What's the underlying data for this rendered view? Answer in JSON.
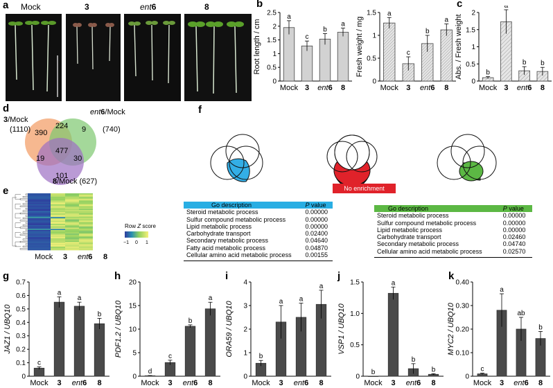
{
  "panels": {
    "a": "a",
    "b": "b",
    "c": "c",
    "d": "d",
    "e": "e",
    "f": "f",
    "g": "g",
    "h": "h",
    "i": "i",
    "j": "j",
    "k": "k"
  },
  "photo_labels": [
    "Mock",
    "3",
    "ent6",
    "8"
  ],
  "treatments_plain": [
    "Mock",
    "3",
    "8"
  ],
  "ent_prefix": "ent",
  "ent_suffix": "6",
  "colors": {
    "bar_dark": "#4a4a4a",
    "bar_light": "#cfcfcf",
    "venn_orange": "#f3a06b",
    "venn_green": "#7dc86f",
    "venn_purple": "#9d6fc3",
    "go_blue": "#29aee3",
    "go_red": "#e0222a",
    "go_green": "#5cb844"
  },
  "panel_b": {
    "chart_data": [
      {
        "type": "bar",
        "categories": [
          "Mock",
          "3",
          "ent6",
          "8"
        ],
        "values": [
          1.95,
          1.28,
          1.53,
          1.78
        ],
        "errors": [
          0.25,
          0.18,
          0.2,
          0.15
        ],
        "letters": [
          "a",
          "c",
          "b",
          "a"
        ],
        "ylabel": "Root length / cm",
        "ylim": [
          0,
          2.5
        ],
        "yticks": [
          "0",
          "0.5",
          "1",
          "1.5",
          "2",
          "2.5"
        ]
      },
      {
        "type": "bar",
        "categories": [
          "Mock",
          "3",
          "ent6",
          "8"
        ],
        "values": [
          1.27,
          0.38,
          0.82,
          1.12
        ],
        "errors": [
          0.12,
          0.15,
          0.18,
          0.13
        ],
        "letters": [
          "a",
          "c",
          "b",
          "a"
        ],
        "ylabel": "Fresh weight / mg",
        "ylim": [
          0,
          1.5
        ],
        "yticks": [
          "0",
          "0.5",
          "1",
          "1.5"
        ]
      }
    ]
  },
  "panel_c": {
    "chart_data": {
      "type": "bar",
      "categories": [
        "Mock",
        "3",
        "ent6",
        "8"
      ],
      "values": [
        0.1,
        1.73,
        0.3,
        0.28
      ],
      "errors": [
        0.03,
        0.35,
        0.12,
        0.12
      ],
      "letters": [
        "b",
        "a",
        "b",
        "b"
      ],
      "ylabel": "Abs. / Fresh weight",
      "ylim": [
        0,
        2
      ],
      "yticks": [
        "0",
        "0.5",
        "1",
        "1.5",
        "2"
      ]
    }
  },
  "panel_d": {
    "set_a_name_bold": "3",
    "set_a_name": "/Mock",
    "set_a_count": "(1110)",
    "set_b_name_italic": "ent",
    "set_b_name_bold": "6",
    "set_b_name": "/Mock",
    "set_b_count": "(740)",
    "set_c_name_bold": "8",
    "set_c_name": "/Mock (627)",
    "regions": {
      "a_only": "390",
      "ab": "224",
      "b_only": "9",
      "abc": "477",
      "ac": "19",
      "bc": "30",
      "c_only": "101"
    }
  },
  "panel_e": {
    "legend_title_pre": "Row ",
    "legend_title_z": "Z",
    "legend_title_post": " score",
    "legend_ticks": [
      "−1",
      "0",
      "1"
    ],
    "columns": [
      "Mock",
      "3",
      "ent6",
      "8"
    ]
  },
  "panel_f": {
    "no_enrichment": "No enrichment",
    "go_header": "Go description",
    "p_header_italic": "P",
    "p_header": " value",
    "left_table": [
      {
        "desc": "Steroid metabolic process",
        "p": "0.00000"
      },
      {
        "desc": "Sulfur compound metabolic process",
        "p": "0.00000"
      },
      {
        "desc": "Lipid metabolic process",
        "p": "0.00000"
      },
      {
        "desc": "Carbohydrate transport",
        "p": "0.02400"
      },
      {
        "desc": "Secondary metabolic process",
        "p": "0.04640"
      },
      {
        "desc": "Fatty acid metabolic process",
        "p": "0.04870"
      },
      {
        "desc": "Cellular amino acid metabolic process",
        "p": "0.00155"
      }
    ],
    "right_table": [
      {
        "desc": "Steroid metabolic process",
        "p": "0.00000"
      },
      {
        "desc": "Sulfur compound metabolic process",
        "p": "0.00000"
      },
      {
        "desc": "Lipid metabolic process",
        "p": "0.00000"
      },
      {
        "desc": "Carbohydrate transport",
        "p": "0.02460"
      },
      {
        "desc": "Secondary metabolic process",
        "p": "0.04740"
      },
      {
        "desc": "Cellular amino acid metabolic process",
        "p": "0.02570"
      }
    ]
  },
  "panel_gk": {
    "chart_data": [
      {
        "type": "bar",
        "gene": "JAZ1",
        "ylabel_suffix": " / UBQ10",
        "categories": [
          "Mock",
          "3",
          "ent6",
          "8"
        ],
        "values": [
          0.06,
          0.55,
          0.52,
          0.39
        ],
        "errors": [
          0.01,
          0.04,
          0.03,
          0.04
        ],
        "letters": [
          "c",
          "a",
          "a",
          "b"
        ],
        "ylim": [
          0,
          0.7
        ],
        "yticks": [
          "0",
          "0.1",
          "0.2",
          "0.3",
          "0.4",
          "0.5",
          "0.6",
          "0.7"
        ]
      },
      {
        "type": "bar",
        "gene": "PDF1.2",
        "ylabel_suffix": " / UBQ10",
        "categories": [
          "Mock",
          "3",
          "ent6",
          "8"
        ],
        "values": [
          0.1,
          2.9,
          10.6,
          14.3
        ],
        "errors": [
          0.05,
          0.5,
          0.3,
          1.4
        ],
        "letters": [
          "d",
          "c",
          "b",
          "a"
        ],
        "ylim": [
          0,
          20
        ],
        "yticks": [
          "0",
          "5",
          "10",
          "15",
          "20"
        ]
      },
      {
        "type": "bar",
        "gene": "ORA59",
        "ylabel_suffix": " / UBQ10",
        "categories": [
          "Mock",
          "3",
          "ent6",
          "8"
        ],
        "values": [
          0.55,
          2.3,
          2.5,
          3.05
        ],
        "errors": [
          0.12,
          0.7,
          0.6,
          0.6
        ],
        "letters": [
          "b",
          "a",
          "a",
          "a"
        ],
        "ylim": [
          0,
          4
        ],
        "yticks": [
          "0",
          "1",
          "2",
          "3",
          "4"
        ]
      },
      {
        "type": "bar",
        "gene": "VSP1",
        "ylabel_suffix": " / UBQ10",
        "categories": [
          "Mock",
          "3",
          "ent6",
          "8"
        ],
        "values": [
          0.0,
          1.32,
          0.12,
          0.03
        ],
        "errors": [
          0.0,
          0.1,
          0.08,
          0.01
        ],
        "letters": [
          "b",
          "a",
          "b",
          "b"
        ],
        "ylim": [
          0,
          1.5
        ],
        "yticks": [
          "0",
          "0.5",
          "1.0",
          "1.5"
        ]
      },
      {
        "type": "bar",
        "gene": "MYC2",
        "ylabel_suffix": " / UBQ10",
        "categories": [
          "Mock",
          "3",
          "ent6",
          "8"
        ],
        "values": [
          0.01,
          0.28,
          0.2,
          0.16
        ],
        "errors": [
          0.003,
          0.07,
          0.05,
          0.03
        ],
        "letters": [
          "c",
          "a",
          "ab",
          "b"
        ],
        "ylim": [
          0,
          0.4
        ],
        "yticks": [
          "0",
          "0.10",
          "0.20",
          "0.30",
          "0.40"
        ]
      }
    ]
  }
}
